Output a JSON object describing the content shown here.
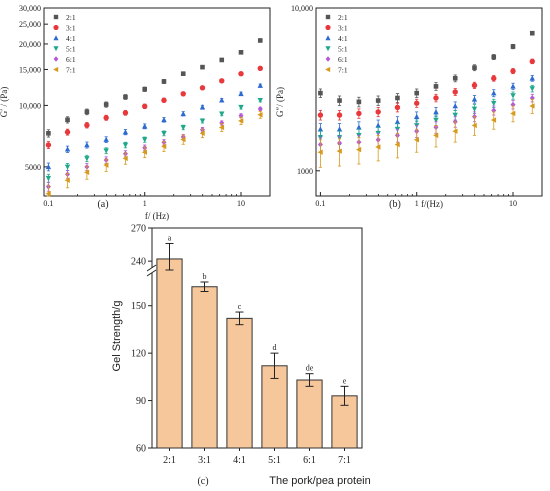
{
  "chart_data": [
    {
      "type": "scatter",
      "panel_label": "(a)",
      "xlabel": "f/ (Hz)",
      "ylabel": "G′ / (Pa)",
      "xscale": "log",
      "yscale": "log",
      "xlim": [
        0.09,
        20
      ],
      "ylim": [
        3600,
        30000
      ],
      "x_ticks": [
        {
          "v": 0.1,
          "t": "0.1"
        },
        {
          "v": 1,
          "t": "1"
        },
        {
          "v": 10,
          "t": "10"
        }
      ],
      "y_ticks": [
        {
          "v": 5000,
          "t": "5000"
        },
        {
          "v": 10000,
          "t": "10,000"
        },
        {
          "v": 15000,
          "t": "15,000"
        },
        {
          "v": 20000,
          "t": "20,000"
        },
        {
          "v": 25000,
          "t": "25,000"
        },
        {
          "v": 30000,
          "t": "30,000"
        }
      ],
      "legend_position": "top-left",
      "x": [
        0.1,
        0.158,
        0.251,
        0.398,
        0.631,
        1.0,
        1.585,
        2.512,
        3.981,
        6.31,
        10.0,
        15.85
      ],
      "series": [
        {
          "name": "2:1",
          "color": "#555555",
          "marker": "square",
          "values": [
            7300,
            8500,
            9300,
            10100,
            11000,
            12000,
            13100,
            14300,
            15400,
            16700,
            18200,
            20800
          ],
          "err": 300
        },
        {
          "name": "3:1",
          "color": "#e8383b",
          "marker": "circle",
          "values": [
            6400,
            7400,
            8000,
            8700,
            9200,
            9900,
            10600,
            11400,
            12200,
            13200,
            14300,
            15200
          ],
          "err": 250
        },
        {
          "name": "4:1",
          "color": "#2e6bd1",
          "marker": "triangle-up",
          "values": [
            5000,
            6100,
            6400,
            6800,
            7400,
            7900,
            8500,
            9100,
            9800,
            10600,
            11400,
            12500
          ],
          "err": 220
        },
        {
          "name": "5:1",
          "color": "#1fa88a",
          "marker": "triangle-down",
          "values": [
            4400,
            5000,
            5500,
            6000,
            6400,
            6800,
            7300,
            7800,
            8400,
            9100,
            9800,
            10600
          ],
          "err": 200
        },
        {
          "name": "6:1",
          "color": "#b45ad6",
          "marker": "diamond",
          "values": [
            4000,
            4600,
            5000,
            5400,
            5800,
            6200,
            6600,
            7000,
            7600,
            8200,
            8900,
            9600
          ],
          "err": 200
        },
        {
          "name": "7:1",
          "color": "#d69a1c",
          "marker": "triangle-left",
          "values": [
            3700,
            4300,
            4700,
            5100,
            5500,
            5900,
            6300,
            6800,
            7300,
            7800,
            8400,
            9000
          ],
          "err": 350
        }
      ]
    },
    {
      "type": "scatter",
      "panel_label": "(b)",
      "xlabel": "f/(Hz)",
      "ylabel": "G″/ (Pa)",
      "xscale": "log",
      "yscale": "log",
      "xlim": [
        0.09,
        20
      ],
      "ylim": [
        700,
        10000
      ],
      "x_ticks": [
        {
          "v": 0.1,
          "t": "0.1"
        },
        {
          "v": 1,
          "t": "1"
        },
        {
          "v": 10,
          "t": "10"
        }
      ],
      "y_ticks": [
        {
          "v": 1000,
          "t": "1000"
        },
        {
          "v": 10000,
          "t": "10,000"
        }
      ],
      "legend_position": "top-left",
      "x": [
        0.1,
        0.158,
        0.251,
        0.398,
        0.631,
        1.0,
        1.585,
        2.512,
        3.981,
        6.31,
        10.0,
        15.85
      ],
      "series": [
        {
          "name": "2:1",
          "color": "#555555",
          "marker": "square",
          "values": [
            3000,
            2700,
            2650,
            2700,
            2800,
            3000,
            3300,
            3700,
            4300,
            5000,
            5800,
            7000
          ],
          "err": 180
        },
        {
          "name": "3:1",
          "color": "#e8383b",
          "marker": "circle",
          "values": [
            2200,
            2200,
            2250,
            2300,
            2450,
            2600,
            2800,
            3050,
            3350,
            3700,
            4100,
            4700
          ],
          "err": 150
        },
        {
          "name": "4:1",
          "color": "#2e6bd1",
          "marker": "triangle-up",
          "values": [
            1800,
            1800,
            1850,
            1900,
            2000,
            2150,
            2300,
            2500,
            2750,
            3000,
            3300,
            3700
          ],
          "err": 150
        },
        {
          "name": "5:1",
          "color": "#1fa88a",
          "marker": "triangle-down",
          "values": [
            1600,
            1600,
            1650,
            1700,
            1800,
            1900,
            2050,
            2200,
            2400,
            2600,
            2900,
            3200
          ],
          "err": 150
        },
        {
          "name": "6:1",
          "color": "#b45ad6",
          "marker": "diamond",
          "values": [
            1450,
            1480,
            1500,
            1550,
            1650,
            1750,
            1850,
            2000,
            2150,
            2350,
            2550,
            2800
          ],
          "err": 150
        },
        {
          "name": "7:1",
          "color": "#d69a1c",
          "marker": "triangle-left",
          "values": [
            1300,
            1320,
            1350,
            1400,
            1450,
            1550,
            1650,
            1750,
            1900,
            2050,
            2250,
            2500
          ],
          "err": 250
        }
      ]
    },
    {
      "type": "bar",
      "panel_label": "(c)",
      "xlabel": "The pork/pea protein",
      "ylabel": "Gel Strength/g",
      "ylim": [
        60,
        270
      ],
      "axis_break": [
        165,
        232
      ],
      "y_ticks": [
        {
          "v": 60,
          "t": "60"
        },
        {
          "v": 90,
          "t": "90"
        },
        {
          "v": 120,
          "t": "120"
        },
        {
          "v": 150,
          "t": "150"
        },
        {
          "v": 240,
          "t": "240"
        },
        {
          "v": 270,
          "t": "270"
        }
      ],
      "bar_color": "#f7c79c",
      "categories": [
        "2:1",
        "3:1",
        "4:1",
        "5:1",
        "6:1",
        "7:1"
      ],
      "values": [
        242,
        162,
        142,
        112,
        103,
        93
      ],
      "errors": [
        14,
        3,
        4,
        8,
        4,
        6
      ],
      "significance": [
        "a",
        "b",
        "c",
        "d",
        "de",
        "e"
      ]
    }
  ]
}
